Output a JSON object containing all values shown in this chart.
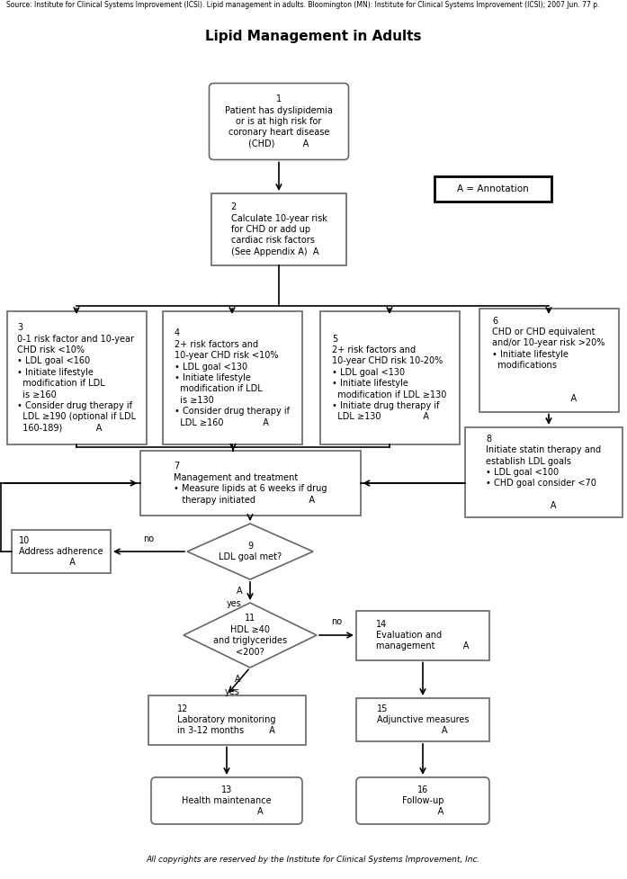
{
  "title": "Lipid Management in Adults",
  "source_text": "Source: Institute for Clinical Systems Improvement (ICSI). Lipid management in adults. Bloomington (MN): Institute for Clinical Systems Improvement (ICSI); 2007 Jun. 77 p.",
  "footer_text": "All copyrights are reserved by the Institute for Clinical Systems Improvement, Inc.",
  "annotation_label": "A = Annotation",
  "bg_color": "#ffffff",
  "edge_color": "#666666",
  "font_size": 7.0,
  "title_fontsize": 11,
  "source_fontsize": 5.5,
  "footer_fontsize": 6.5
}
